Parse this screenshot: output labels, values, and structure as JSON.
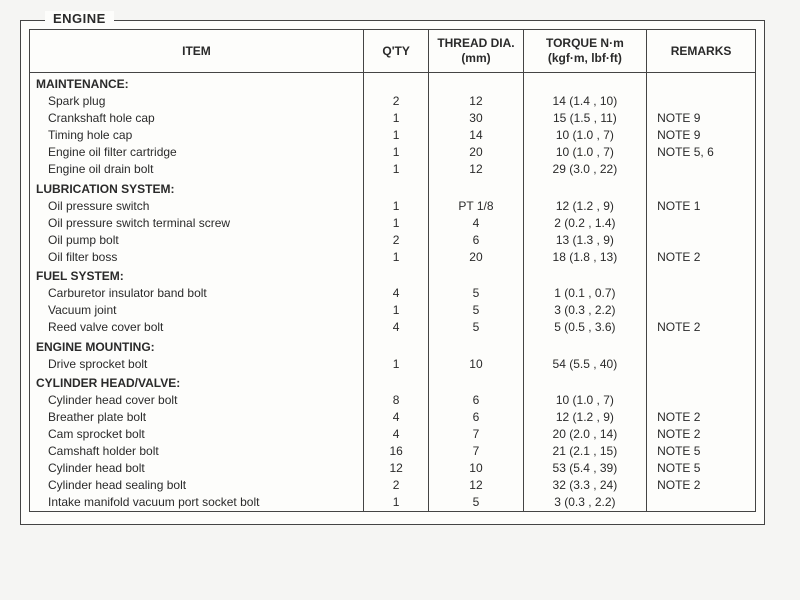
{
  "frame_title": "ENGINE",
  "headers": {
    "item": "ITEM",
    "qty": "Q'TY",
    "thread": "THREAD\nDIA. (mm)",
    "torque": "TORQUE\nN·m (kgf·m, lbf·ft)",
    "remarks": "REMARKS"
  },
  "sections": [
    {
      "name": "MAINTENANCE:",
      "rows": [
        {
          "item": "Spark plug",
          "qty": "2",
          "thread": "12",
          "torque": "14 (1.4 , 10)",
          "remarks": ""
        },
        {
          "item": "Crankshaft hole cap",
          "qty": "1",
          "thread": "30",
          "torque": "15 (1.5 , 11)",
          "remarks": "NOTE 9"
        },
        {
          "item": "Timing hole cap",
          "qty": "1",
          "thread": "14",
          "torque": "10 (1.0 , 7)",
          "remarks": "NOTE 9"
        },
        {
          "item": "Engine oil filter cartridge",
          "qty": "1",
          "thread": "20",
          "torque": "10 (1.0 , 7)",
          "remarks": "NOTE 5, 6"
        },
        {
          "item": "Engine oil drain bolt",
          "qty": "1",
          "thread": "12",
          "torque": "29 (3.0 , 22)",
          "remarks": ""
        }
      ]
    },
    {
      "name": "LUBRICATION SYSTEM:",
      "rows": [
        {
          "item": "Oil pressure switch",
          "qty": "1",
          "thread": "PT 1/8",
          "torque": "12 (1.2 , 9)",
          "remarks": "NOTE 1"
        },
        {
          "item": "Oil pressure switch terminal screw",
          "qty": "1",
          "thread": "4",
          "torque": "2 (0.2 , 1.4)",
          "remarks": ""
        },
        {
          "item": "Oil pump bolt",
          "qty": "2",
          "thread": "6",
          "torque": "13 (1.3 , 9)",
          "remarks": ""
        },
        {
          "item": "Oil filter boss",
          "qty": "1",
          "thread": "20",
          "torque": "18 (1.8 , 13)",
          "remarks": "NOTE 2"
        }
      ]
    },
    {
      "name": "FUEL SYSTEM:",
      "rows": [
        {
          "item": "Carburetor insulator band bolt",
          "qty": "4",
          "thread": "5",
          "torque": "1 (0.1 , 0.7)",
          "remarks": ""
        },
        {
          "item": "Vacuum joint",
          "qty": "1",
          "thread": "5",
          "torque": "3 (0.3 , 2.2)",
          "remarks": ""
        },
        {
          "item": "Reed valve cover bolt",
          "qty": "4",
          "thread": "5",
          "torque": "5 (0.5 , 3.6)",
          "remarks": "NOTE 2"
        }
      ]
    },
    {
      "name": "ENGINE MOUNTING:",
      "rows": [
        {
          "item": "Drive sprocket bolt",
          "qty": "1",
          "thread": "10",
          "torque": "54 (5.5 , 40)",
          "remarks": ""
        }
      ]
    },
    {
      "name": "CYLINDER HEAD/VALVE:",
      "rows": [
        {
          "item": "Cylinder head cover bolt",
          "qty": "8",
          "thread": "6",
          "torque": "10 (1.0 , 7)",
          "remarks": ""
        },
        {
          "item": "Breather plate bolt",
          "qty": "4",
          "thread": "6",
          "torque": "12 (1.2 , 9)",
          "remarks": "NOTE 2"
        },
        {
          "item": "Cam sprocket bolt",
          "qty": "4",
          "thread": "7",
          "torque": "20 (2.0 , 14)",
          "remarks": "NOTE 2"
        },
        {
          "item": "Camshaft holder bolt",
          "qty": "16",
          "thread": "7",
          "torque": "21 (2.1 , 15)",
          "remarks": "NOTE 5"
        },
        {
          "item": "Cylinder head bolt",
          "qty": "12",
          "thread": "10",
          "torque": "53 (5.4 , 39)",
          "remarks": "NOTE 5"
        },
        {
          "item": "Cylinder head sealing bolt",
          "qty": "2",
          "thread": "12",
          "torque": "32 (3.3 , 24)",
          "remarks": "NOTE 2"
        },
        {
          "item": "Intake manifold vacuum port socket bolt",
          "qty": "1",
          "thread": "5",
          "torque": "3 (0.3 , 2.2)",
          "remarks": ""
        }
      ]
    }
  ]
}
